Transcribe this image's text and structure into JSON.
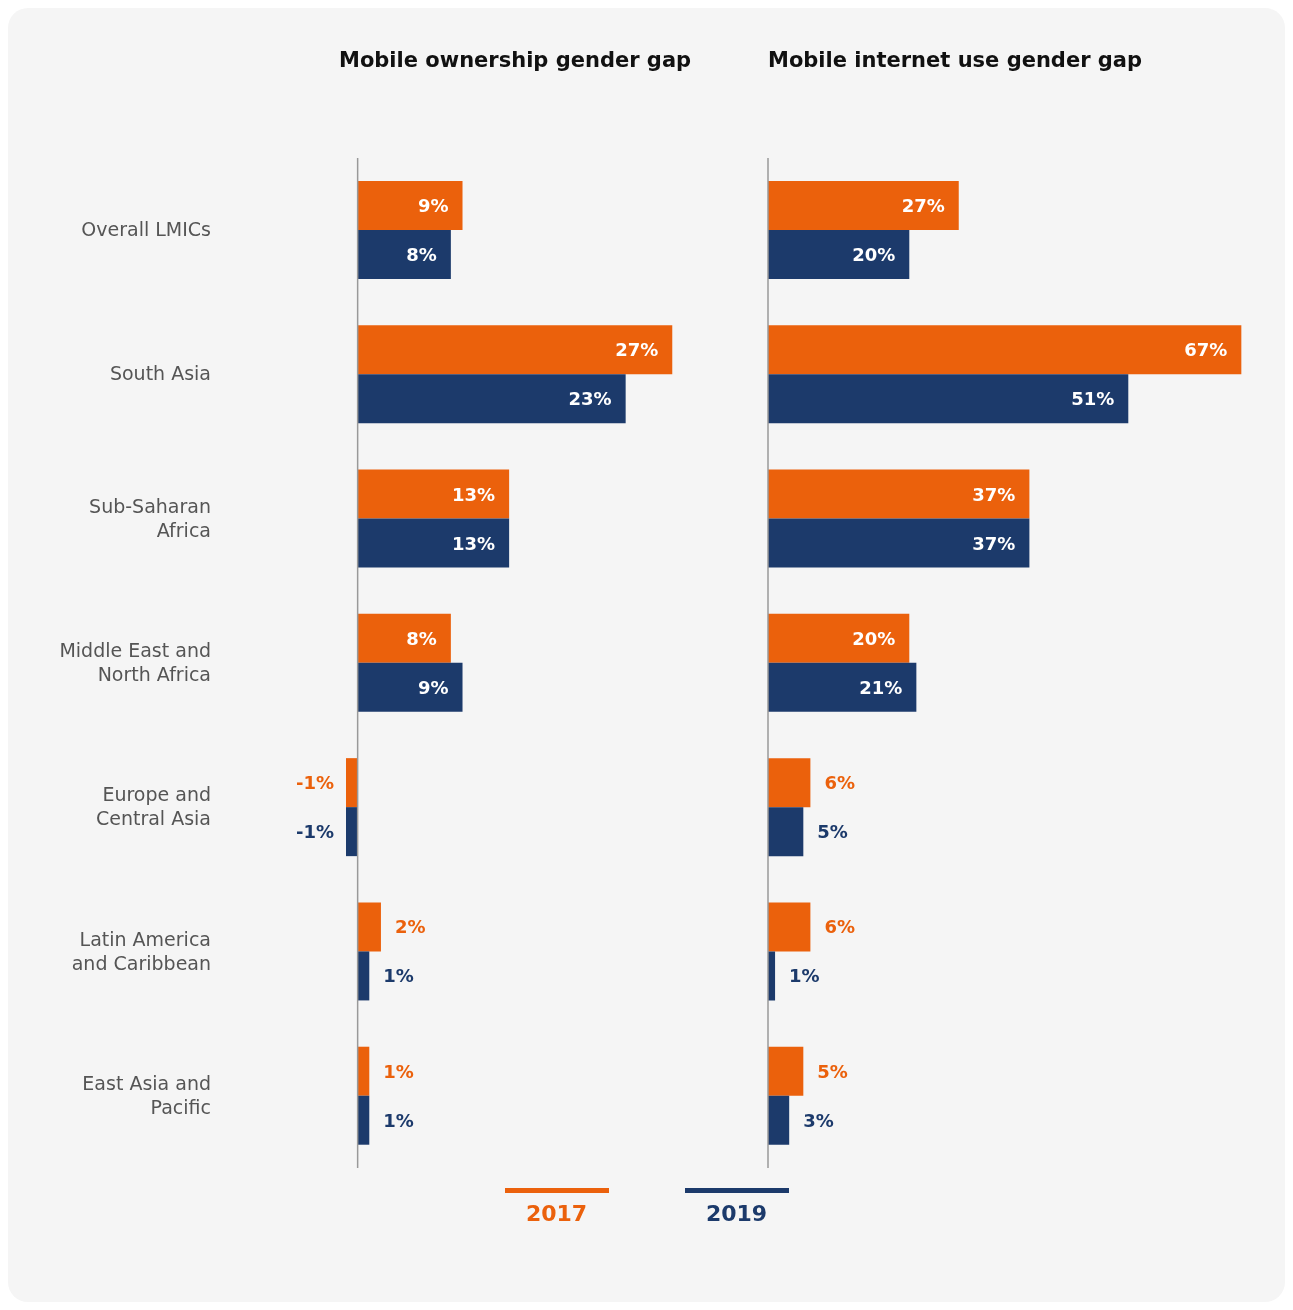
{
  "chart_data": [
    {
      "type": "bar",
      "orientation": "horizontal",
      "title": "Mobile ownership gender gap",
      "categories": [
        "Overall LMICs",
        "South Asia",
        "Sub-Saharan Africa",
        "Middle East and North Africa",
        "Europe and Central Asia",
        "Latin America and Caribbean",
        "East Asia and Pacific"
      ],
      "series": [
        {
          "name": "2017",
          "color": "#eb610c",
          "values": [
            9,
            27,
            13,
            8,
            -1,
            2,
            1
          ],
          "value_labels": [
            "9%",
            "27%",
            "13%",
            "8%",
            "-1%",
            "2%",
            "1%"
          ]
        },
        {
          "name": "2019",
          "color": "#1c3a6b",
          "values": [
            8,
            23,
            13,
            9,
            -1,
            1,
            1
          ],
          "value_labels": [
            "8%",
            "23%",
            "13%",
            "9%",
            "-1%",
            "1%",
            "1%"
          ]
        }
      ],
      "legend": "bottom",
      "tick_labels": "y",
      "grid": false
    },
    {
      "type": "bar",
      "orientation": "horizontal",
      "title": "Mobile internet use gender gap",
      "categories": [
        null,
        null,
        null,
        null,
        null,
        null,
        null
      ],
      "series": [
        {
          "color": "#eb610c",
          "values": [
            27,
            67,
            37,
            20,
            6,
            6,
            5
          ],
          "value_labels": [
            "27%",
            "67%",
            "37%",
            "20%",
            "6%",
            "6%",
            "5%"
          ]
        },
        {
          "color": "#1c3a6b",
          "values": [
            20,
            51,
            37,
            21,
            5,
            1,
            3
          ],
          "value_labels": [
            "20%",
            "51%",
            "37%",
            "21%",
            "5%",
            "1%",
            "3%"
          ]
        }
      ],
      "tick_labels": false,
      "grid": false
    }
  ]
}
